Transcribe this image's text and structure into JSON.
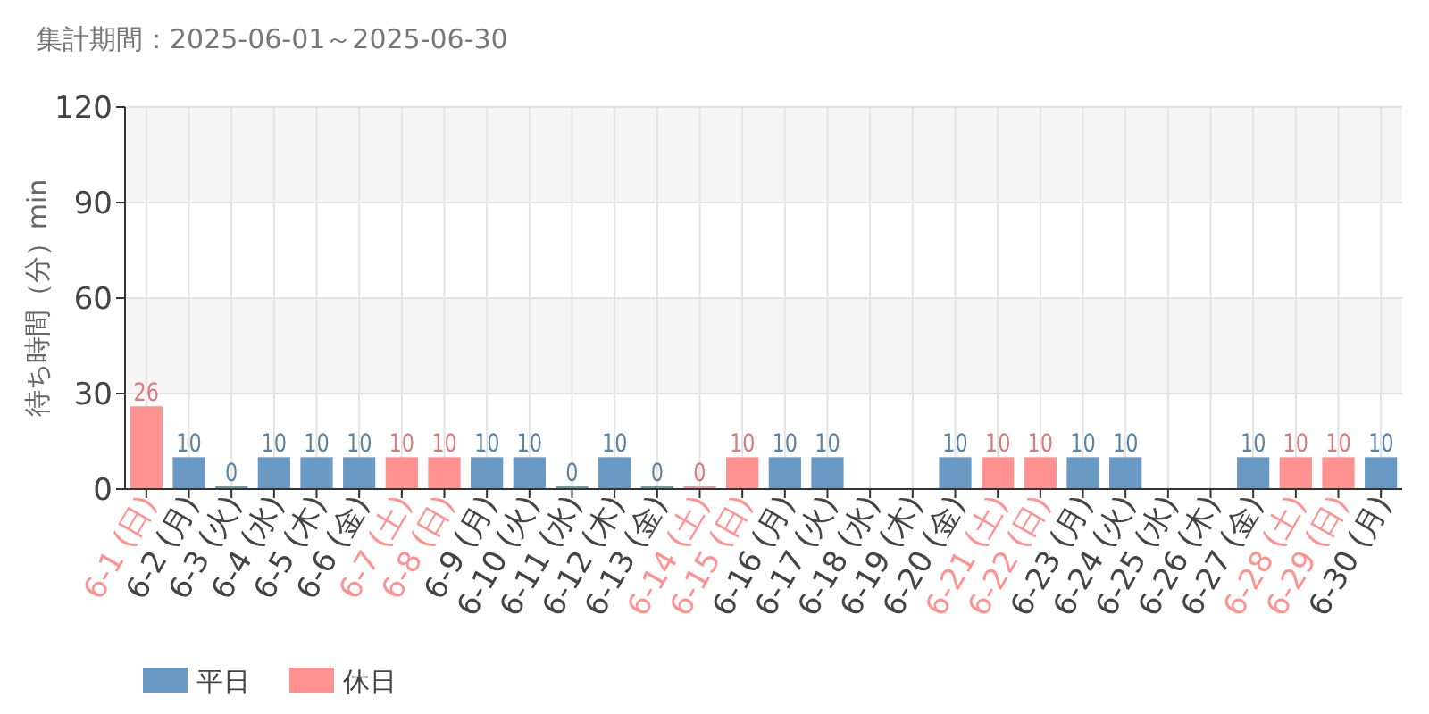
{
  "chart_data": {
    "type": "bar",
    "title": "集計期間：2025-06-01～2025-06-30",
    "ylabel": "待ち時間（分）min",
    "categories": [
      "6-1 (日)",
      "6-2 (月)",
      "6-3 (火)",
      "6-4 (水)",
      "6-5 (木)",
      "6-6 (金)",
      "6-7 (土)",
      "6-8 (日)",
      "6-9 (月)",
      "6-10 (火)",
      "6-11 (水)",
      "6-12 (木)",
      "6-13 (金)",
      "6-14 (土)",
      "6-15 (日)",
      "6-16 (月)",
      "6-17 (火)",
      "6-18 (水)",
      "6-19 (木)",
      "6-20 (金)",
      "6-21 (土)",
      "6-22 (日)",
      "6-23 (月)",
      "6-24 (火)",
      "6-25 (水)",
      "6-26 (木)",
      "6-27 (金)",
      "6-28 (土)",
      "6-29 (日)",
      "6-30 (月)"
    ],
    "series": [
      {
        "name": "平日",
        "color": "#6a9ac4",
        "values": [
          null,
          10,
          0,
          10,
          10,
          10,
          null,
          null,
          10,
          10,
          0,
          10,
          0,
          null,
          null,
          10,
          10,
          null,
          null,
          10,
          null,
          null,
          10,
          10,
          null,
          null,
          10,
          null,
          null,
          10
        ]
      },
      {
        "name": "休日",
        "color": "#ff9191",
        "values": [
          26,
          null,
          null,
          null,
          null,
          null,
          10,
          10,
          null,
          null,
          null,
          null,
          null,
          0,
          10,
          null,
          null,
          null,
          null,
          null,
          10,
          10,
          null,
          null,
          null,
          null,
          null,
          10,
          10,
          null
        ]
      }
    ],
    "ylim": [
      0,
      120
    ],
    "yticks": [
      0,
      30,
      60,
      90,
      120
    ],
    "grid": true,
    "data_labels": true,
    "legend": "bottom left"
  }
}
